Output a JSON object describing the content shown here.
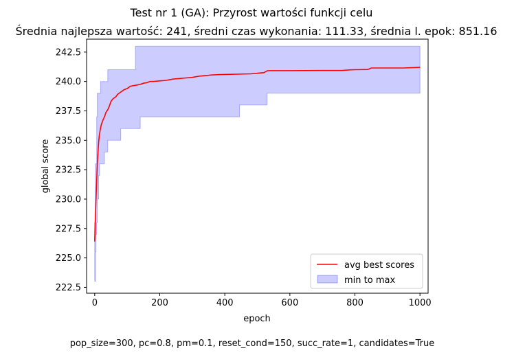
{
  "chart_data": {
    "type": "line",
    "title": "Test nr 1 (GA): Przyrost wartości funkcji celu",
    "subtitle": "Średnia najlepsza wartość: 241, średni czas wykonania: 111.33, średnia l. epok: 851.16",
    "xlabel": "epoch",
    "ylabel": "global score",
    "footer": "pop_size=300, pc=0.8, pm=0.1, reset_cond=150, succ_rate=1, candidates=True",
    "xlim": [
      -25,
      1025
    ],
    "ylim": [
      222.0,
      243.6
    ],
    "xticks": [
      0,
      200,
      400,
      600,
      800,
      1000
    ],
    "xtick_labels": [
      "0",
      "200",
      "400",
      "600",
      "800",
      "1000"
    ],
    "yticks": [
      222.5,
      225.0,
      227.5,
      230.0,
      232.5,
      235.0,
      237.5,
      240.0,
      242.5
    ],
    "ytick_labels": [
      "222.5",
      "225.0",
      "227.5",
      "230.0",
      "232.5",
      "235.0",
      "237.5",
      "240.0",
      "242.5"
    ],
    "grid": false,
    "legend_position": "lower-right",
    "series": [
      {
        "name": "avg best scores",
        "kind": "line",
        "color": "#ff0000",
        "x": [
          0,
          2,
          4,
          6,
          8,
          10,
          12,
          14,
          17,
          20,
          25,
          30,
          35,
          40,
          45,
          50,
          55,
          60,
          65,
          70,
          80,
          90,
          100,
          110,
          120,
          130,
          140,
          150,
          160,
          170,
          180,
          200,
          220,
          240,
          260,
          280,
          300,
          320,
          340,
          360,
          380,
          400,
          440,
          480,
          500,
          520,
          530,
          540,
          600,
          700,
          760,
          780,
          800,
          840,
          850,
          900,
          950,
          1000
        ],
        "y": [
          226.4,
          228.5,
          230.0,
          231.5,
          233.0,
          234.0,
          234.8,
          235.4,
          235.9,
          236.3,
          236.7,
          237.0,
          237.4,
          237.6,
          237.9,
          238.3,
          238.5,
          238.6,
          238.7,
          238.9,
          239.1,
          239.3,
          239.4,
          239.6,
          239.65,
          239.7,
          239.75,
          239.85,
          239.9,
          240.0,
          240.0,
          240.05,
          240.1,
          240.2,
          240.25,
          240.3,
          240.35,
          240.45,
          240.5,
          240.55,
          240.58,
          240.6,
          240.62,
          240.65,
          240.7,
          240.75,
          240.9,
          240.92,
          240.92,
          240.93,
          240.93,
          240.98,
          241.0,
          241.02,
          241.15,
          241.15,
          241.15,
          241.2
        ]
      },
      {
        "name": "min to max",
        "kind": "band",
        "color": "#0000ff",
        "fill_opacity": 0.2,
        "x": [
          0,
          2,
          4,
          6,
          8,
          10,
          12,
          15,
          18,
          20,
          25,
          30,
          40,
          45,
          80,
          120,
          125,
          140,
          445,
          530,
          1000
        ],
        "min": [
          223.0,
          225.5,
          227.0,
          228.0,
          230.0,
          230.0,
          232.0,
          233.0,
          233.0,
          233.0,
          233.0,
          234.0,
          235.0,
          235.0,
          236.0,
          236.0,
          236.0,
          237.0,
          238.0,
          239.0,
          239.0
        ],
        "max": [
          228.0,
          233.0,
          233.0,
          237.0,
          239.0,
          239.0,
          239.0,
          239.0,
          240.0,
          240.0,
          240.0,
          240.0,
          241.0,
          241.0,
          241.0,
          241.0,
          243.0,
          243.0,
          243.0,
          243.0,
          243.0
        ]
      }
    ]
  }
}
